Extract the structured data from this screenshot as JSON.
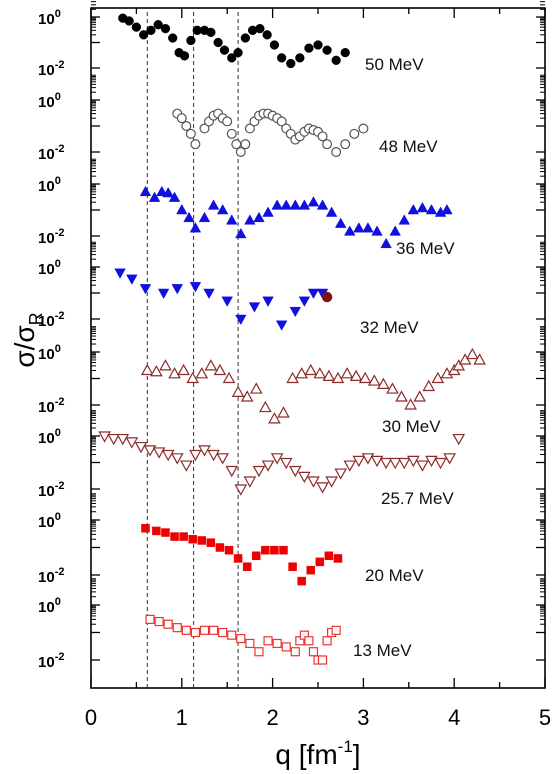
{
  "chart_data": {
    "type": "scatter",
    "title": "",
    "xlabel": "q [fm",
    "xlabel_sup": "-1",
    "xlabel_end": "]",
    "ylabel": "σ/σ",
    "ylabel_sub": "R",
    "xlim": [
      0,
      5
    ],
    "x_ticks": [
      "0",
      "1",
      "2",
      "3",
      "4",
      "5"
    ],
    "y_scale": "log",
    "panel_tick_labels": {
      "top": "10",
      "top_sup": "0",
      "bottom": "10",
      "bottom_sup": "-2"
    },
    "reference_lines_x": [
      0.62,
      1.13,
      1.62
    ],
    "grid": false,
    "series": [
      {
        "name": "50 MeV",
        "color": "#000000",
        "marker": "filled-circle",
        "x": [
          0.35,
          0.42,
          0.5,
          0.58,
          0.66,
          0.74,
          0.82,
          0.9,
          0.97,
          1.03,
          1.1,
          1.17,
          1.25,
          1.32,
          1.4,
          1.47,
          1.55,
          1.62,
          1.7,
          1.78,
          1.86,
          1.94,
          2.02,
          2.1,
          2.2,
          2.3,
          2.4,
          2.5,
          2.6,
          2.7,
          2.8
        ],
        "y": [
          0.9,
          0.7,
          0.4,
          0.2,
          0.3,
          0.5,
          0.35,
          0.15,
          0.04,
          0.03,
          0.12,
          0.3,
          0.3,
          0.25,
          0.1,
          0.05,
          0.025,
          0.04,
          0.15,
          0.3,
          0.35,
          0.2,
          0.08,
          0.025,
          0.015,
          0.025,
          0.06,
          0.08,
          0.05,
          0.02,
          0.04
        ]
      },
      {
        "name": "48 MeV",
        "color": "#555555",
        "marker": "open-circle",
        "x": [
          0.95,
          1.0,
          1.05,
          1.1,
          1.15,
          1.25,
          1.3,
          1.35,
          1.4,
          1.45,
          1.5,
          1.55,
          1.6,
          1.65,
          1.7,
          1.75,
          1.8,
          1.85,
          1.9,
          1.95,
          2.0,
          2.05,
          2.1,
          2.15,
          2.2,
          2.25,
          2.3,
          2.35,
          2.4,
          2.45,
          2.5,
          2.55,
          2.6,
          2.7,
          2.8,
          2.9,
          3.0
        ],
        "y": [
          0.3,
          0.2,
          0.1,
          0.05,
          0.02,
          0.08,
          0.15,
          0.25,
          0.3,
          0.2,
          0.15,
          0.05,
          0.02,
          0.01,
          0.02,
          0.08,
          0.15,
          0.25,
          0.3,
          0.3,
          0.25,
          0.2,
          0.15,
          0.08,
          0.05,
          0.03,
          0.04,
          0.06,
          0.08,
          0.07,
          0.06,
          0.04,
          0.02,
          0.01,
          0.02,
          0.05,
          0.08
        ]
      },
      {
        "name": "36 MeV",
        "color": "#1010e0",
        "marker": "filled-triangle-up",
        "x": [
          0.6,
          0.7,
          0.78,
          0.85,
          0.92,
          1.0,
          1.08,
          1.15,
          1.25,
          1.35,
          1.45,
          1.55,
          1.65,
          1.75,
          1.85,
          1.95,
          2.05,
          2.15,
          2.25,
          2.35,
          2.45,
          2.55,
          2.65,
          2.75,
          2.85,
          2.95,
          3.05,
          3.15,
          3.25,
          3.35,
          3.45,
          3.55,
          3.65,
          3.75,
          3.85,
          3.92
        ],
        "y": [
          0.5,
          0.3,
          0.5,
          0.45,
          0.3,
          0.1,
          0.05,
          0.02,
          0.05,
          0.15,
          0.1,
          0.04,
          0.012,
          0.04,
          0.05,
          0.08,
          0.15,
          0.15,
          0.15,
          0.15,
          0.2,
          0.15,
          0.08,
          0.03,
          0.015,
          0.02,
          0.02,
          0.015,
          0.005,
          0.015,
          0.04,
          0.1,
          0.12,
          0.1,
          0.08,
          0.1
        ]
      },
      {
        "name": "32 MeV",
        "color": "#1010e0",
        "marker": "filled-triangle-down",
        "x": [
          0.32,
          0.45,
          0.6,
          0.8,
          0.95,
          1.15,
          1.3,
          1.5,
          1.65,
          1.8,
          1.95,
          2.1,
          2.25,
          2.35,
          2.45,
          2.55
        ],
        "y": [
          0.6,
          0.35,
          0.15,
          0.1,
          0.15,
          0.18,
          0.1,
          0.05,
          0.01,
          0.03,
          0.05,
          0.006,
          0.02,
          0.05,
          0.1,
          0.1
        ]
      },
      {
        "name": "",
        "color": "#7a1414",
        "marker": "filled-circle-large",
        "x": [
          2.6
        ],
        "y": [
          0.07
        ]
      },
      {
        "name": "30 MeV",
        "color": "#8b2b2b",
        "marker": "open-triangle-up",
        "x": [
          0.62,
          0.72,
          0.82,
          0.92,
          1.02,
          1.12,
          1.22,
          1.32,
          1.42,
          1.52,
          1.62,
          1.72,
          1.82,
          1.92,
          2.02,
          2.12,
          2.22,
          2.32,
          2.42,
          2.52,
          2.62,
          2.72,
          2.82,
          2.92,
          3.02,
          3.12,
          3.22,
          3.32,
          3.42,
          3.52,
          3.62,
          3.72,
          3.82,
          3.92,
          4.0,
          4.05,
          4.12,
          4.2,
          4.28
        ],
        "y": [
          0.2,
          0.18,
          0.3,
          0.15,
          0.2,
          0.1,
          0.15,
          0.3,
          0.2,
          0.1,
          0.03,
          0.02,
          0.04,
          0.008,
          0.003,
          0.005,
          0.1,
          0.15,
          0.2,
          0.15,
          0.12,
          0.1,
          0.15,
          0.12,
          0.1,
          0.08,
          0.06,
          0.04,
          0.02,
          0.01,
          0.02,
          0.05,
          0.1,
          0.15,
          0.2,
          0.3,
          0.5,
          0.8,
          0.5
        ]
      },
      {
        "name": "25.7 MeV",
        "color": "#8b2b2b",
        "marker": "open-triangle-down",
        "x": [
          0.15,
          0.25,
          0.35,
          0.45,
          0.55,
          0.65,
          0.75,
          0.85,
          0.95,
          1.05,
          1.15,
          1.25,
          1.35,
          1.45,
          1.55,
          1.65,
          1.75,
          1.85,
          1.95,
          2.05,
          2.15,
          2.25,
          2.35,
          2.45,
          2.55,
          2.65,
          2.75,
          2.85,
          2.95,
          3.05,
          3.15,
          3.25,
          3.35,
          3.45,
          3.55,
          3.65,
          3.75,
          3.85,
          3.95,
          4.05
        ],
        "y": [
          1.0,
          0.8,
          0.8,
          0.6,
          0.4,
          0.3,
          0.25,
          0.2,
          0.15,
          0.08,
          0.2,
          0.3,
          0.2,
          0.15,
          0.05,
          0.01,
          0.02,
          0.05,
          0.08,
          0.15,
          0.1,
          0.05,
          0.03,
          0.02,
          0.012,
          0.02,
          0.04,
          0.08,
          0.12,
          0.15,
          0.12,
          0.1,
          0.1,
          0.1,
          0.12,
          0.08,
          0.12,
          0.1,
          0.15,
          0.8
        ]
      },
      {
        "name": "20 MeV",
        "color": "#ee0000",
        "marker": "filled-square",
        "x": [
          0.6,
          0.72,
          0.82,
          0.92,
          1.02,
          1.12,
          1.22,
          1.32,
          1.42,
          1.52,
          1.62,
          1.72,
          1.82,
          1.92,
          2.02,
          2.12,
          2.22,
          2.32,
          2.42,
          2.52,
          2.62,
          2.72
        ],
        "y": [
          0.5,
          0.4,
          0.35,
          0.25,
          0.25,
          0.2,
          0.18,
          0.15,
          0.1,
          0.08,
          0.04,
          0.02,
          0.05,
          0.08,
          0.08,
          0.08,
          0.02,
          0.006,
          0.015,
          0.03,
          0.05,
          0.04
        ]
      },
      {
        "name": "13 MeV",
        "color": "#ee3333",
        "marker": "open-square",
        "x": [
          0.65,
          0.75,
          0.85,
          0.95,
          1.05,
          1.15,
          1.25,
          1.35,
          1.45,
          1.55,
          1.65,
          1.75,
          1.85,
          1.95,
          2.05,
          2.15,
          2.25,
          2.3,
          2.35,
          2.4,
          2.45,
          2.5,
          2.55,
          2.6,
          2.65,
          2.7
        ],
        "y": [
          0.3,
          0.25,
          0.2,
          0.15,
          0.12,
          0.1,
          0.12,
          0.12,
          0.1,
          0.08,
          0.06,
          0.04,
          0.02,
          0.05,
          0.04,
          0.03,
          0.02,
          0.05,
          0.08,
          0.05,
          0.02,
          0.01,
          0.01,
          0.05,
          0.1,
          0.12
        ]
      }
    ]
  }
}
